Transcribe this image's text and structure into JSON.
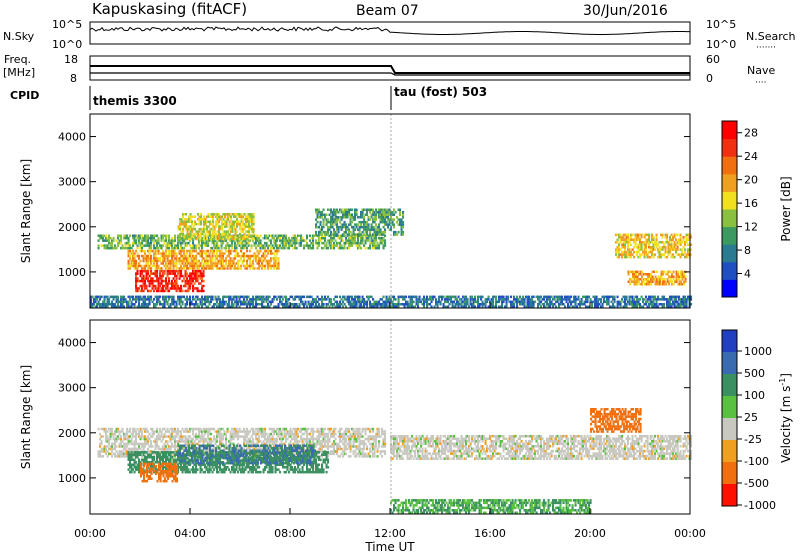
{
  "header": {
    "station": "Kapuskasing (fitACF)",
    "beam": "Beam 07",
    "date": "30/Jun/2016"
  },
  "noise_panel": {
    "left_label": "N.Sky",
    "right_label": "N.Search",
    "right_dots": "·······",
    "ticks": [
      "10^5",
      "10^0"
    ]
  },
  "freq_panel": {
    "left_label": "Freq.",
    "left_unit": "[MHz]",
    "right_label": "Nave",
    "right_dots": "····",
    "left_ticks": [
      "18",
      "8"
    ],
    "right_ticks": [
      "60",
      "0"
    ]
  },
  "cpid_panel": {
    "label": "CPID",
    "modes": [
      "themis 3300",
      "tau (fost) 503"
    ]
  },
  "axes": {
    "xlabel": "Time UT",
    "ylabel": "Slant Range [km]",
    "x_ticks": [
      "00:00",
      "04:00",
      "08:00",
      "12:00",
      "16:00",
      "20:00",
      "00:00"
    ],
    "y_ticks": [
      "1000",
      "2000",
      "3000",
      "4000"
    ]
  },
  "power_scale": {
    "label": "Power [dB]",
    "ticks": [
      "4",
      "8",
      "12",
      "16",
      "20",
      "24",
      "28"
    ],
    "colors": [
      "#0000ff",
      "#1f4fc0",
      "#2a7a90",
      "#3c9a60",
      "#8ac040",
      "#f0e020",
      "#f0a020",
      "#f07010",
      "#f03010",
      "#ff0000"
    ]
  },
  "velocity_scale": {
    "label": "Velocity [m s",
    "label_sup": "-1",
    "label_end": "]",
    "ticks": [
      "1000",
      "500",
      "100",
      "25",
      "-25",
      "-100",
      "-500",
      "-1000"
    ],
    "colors": [
      "#2040c0",
      "#3a6ab0",
      "#3a9060",
      "#5ac040",
      "#c8c8c0",
      "#f0a020",
      "#f07010",
      "#ff1000"
    ]
  },
  "chart_data": [
    {
      "type": "heatmap",
      "name_panel": "power",
      "x_range_hours": [
        0,
        24
      ],
      "y_range_km": [
        200,
        4500
      ],
      "mode_change_hour": 11.9,
      "regions": [
        {
          "t": [
            0.3,
            11.8
          ],
          "r": [
            1500,
            1800
          ],
          "v": 12
        },
        {
          "t": [
            1.5,
            7.5
          ],
          "r": [
            1050,
            1450
          ],
          "v": 20
        },
        {
          "t": [
            1.8,
            4.5
          ],
          "r": [
            550,
            1000
          ],
          "v": 28
        },
        {
          "t": [
            3.5,
            6.5
          ],
          "r": [
            1700,
            2300
          ],
          "v": 16
        },
        {
          "t": [
            9.0,
            12.5
          ],
          "r": [
            1800,
            2400
          ],
          "v": 10
        },
        {
          "t": [
            21.0,
            24.0
          ],
          "r": [
            1300,
            1800
          ],
          "v": 18
        },
        {
          "t": [
            21.5,
            23.8
          ],
          "r": [
            700,
            1000
          ],
          "v": 20
        },
        {
          "t": [
            0.0,
            24.0
          ],
          "r": [
            200,
            450
          ],
          "v": 6
        }
      ]
    },
    {
      "type": "heatmap",
      "name_panel": "velocity",
      "x_range_hours": [
        0,
        24
      ],
      "y_range_km": [
        200,
        4500
      ],
      "mode_change_hour": 11.9,
      "regions": [
        {
          "t": [
            0.3,
            11.8
          ],
          "r": [
            1450,
            2100
          ],
          "v": 0
        },
        {
          "t": [
            1.5,
            9.5
          ],
          "r": [
            1100,
            1550
          ],
          "v": 100
        },
        {
          "t": [
            2.0,
            3.5
          ],
          "r": [
            900,
            1300
          ],
          "v": -300
        },
        {
          "t": [
            3.5,
            9.0
          ],
          "r": [
            1300,
            1700
          ],
          "v": 300
        },
        {
          "t": [
            12.0,
            24.0
          ],
          "r": [
            1400,
            1900
          ],
          "v": 0
        },
        {
          "t": [
            20.0,
            22.0
          ],
          "r": [
            2000,
            2500
          ],
          "v": -400
        },
        {
          "t": [
            12.0,
            20.0
          ],
          "r": [
            200,
            500
          ],
          "v": 60
        }
      ]
    }
  ]
}
